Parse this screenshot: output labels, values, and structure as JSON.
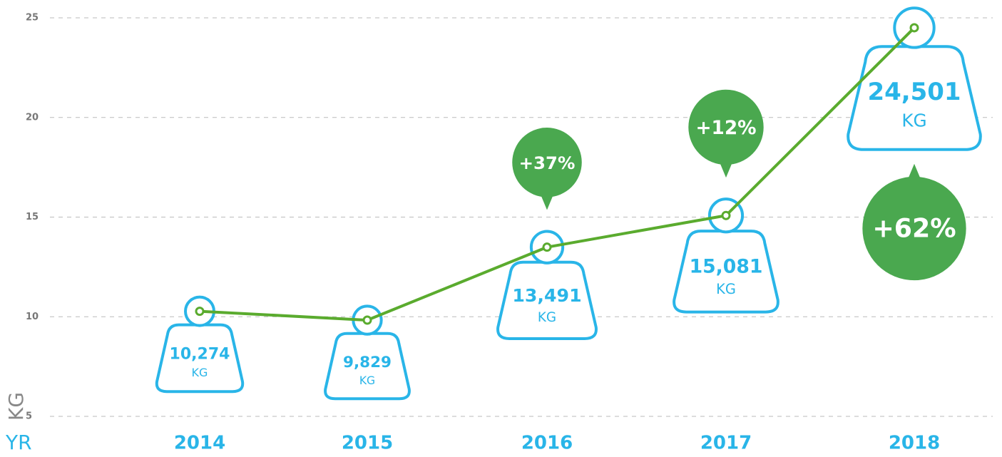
{
  "chart_data": {
    "type": "line",
    "xlabel": "YR",
    "ylabel": "KG",
    "value_unit": "KG",
    "categories": [
      "2014",
      "2015",
      "2016",
      "2017",
      "2018"
    ],
    "values": [
      10.274,
      9.829,
      13.491,
      15.081,
      24.501
    ],
    "value_labels": [
      "10,274",
      "9,829",
      "13,491",
      "15,081",
      "24,501"
    ],
    "change_labels": [
      null,
      null,
      "+37%",
      "+12%",
      "+62%"
    ],
    "color": "#5aab2e",
    "marker_color": "#29b5e8",
    "bubble_color": "#4aa84f",
    "ylim": [
      5,
      25
    ],
    "yticks": [
      5,
      10,
      15,
      20,
      25
    ],
    "grid": true
  }
}
